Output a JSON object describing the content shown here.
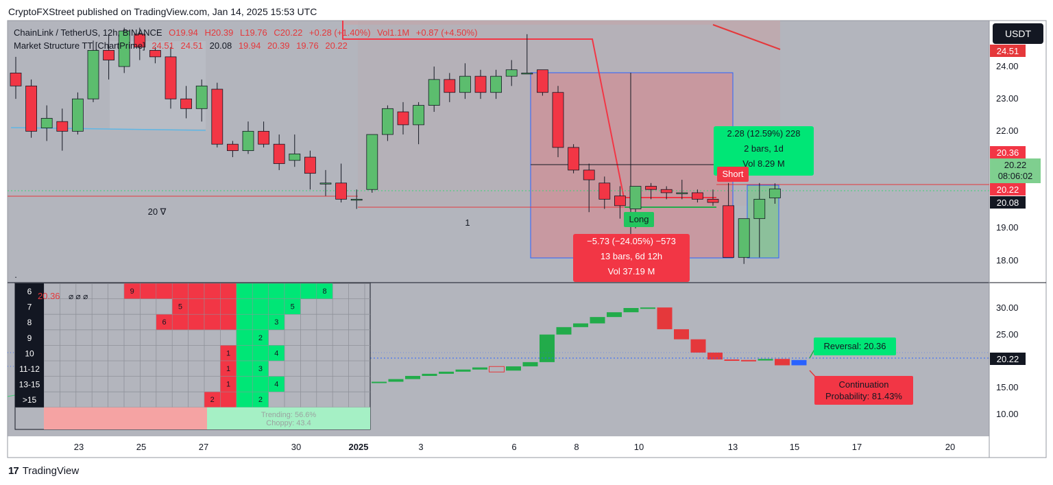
{
  "header": "CryptoFXStreet published on TradingView.com, Jan 14, 2025 15:53 UTC",
  "brand": "TradingView",
  "symbol_line": {
    "symbol": "ChainLink / TetherUS, 12h, BINANCE",
    "open": "O19.94",
    "high": "H20.39",
    "low": "L19.76",
    "close": "C20.22",
    "change": "+0.28 (+1.40%)",
    "vol": "Vol1.1M",
    "vol_change": "+0.87 (+4.50%)"
  },
  "indicator_line": {
    "name": "Market Structure TT [ChartPrime]",
    "values": [
      "24.51",
      "24.51",
      "20.08",
      "19.94",
      "20.39",
      "19.76",
      "20.22"
    ]
  },
  "currency": "USDT",
  "price_tags": {
    "top": "24.51",
    "r1": "20.36",
    "last": "20.22",
    "countdown": "08:06:02",
    "r2": "20.22",
    "dark": "20.08",
    "lower_last": "20.22"
  },
  "price_axis_upper": [
    "24.00",
    "23.00",
    "22.00",
    "19.00",
    "18.00"
  ],
  "price_axis_lower": [
    "30.00",
    "25.00",
    "15.00",
    "10.00"
  ],
  "time_axis": [
    "23",
    "25",
    "27",
    "30",
    "2025",
    "3",
    "6",
    "8",
    "10",
    "13",
    "15",
    "17",
    "20"
  ],
  "chart_labels": {
    "twenty": "20 ∇",
    "one": "1",
    "long": "Long",
    "short": "Short",
    "dot": "."
  },
  "measure_short": {
    "line1": "−5.73 (−24.05%) −573",
    "line2": "13 bars, 6d 12h",
    "line3": "Vol 37.19 M"
  },
  "measure_long": {
    "line1": "2.28 (12.59%) 228",
    "line2": "2 bars, 1d",
    "line3": "Vol 8.29 M"
  },
  "lower_labels": {
    "reversal": "Reversal: 20.36",
    "continuation": "Continuation",
    "probability": "Probability: 81.43%"
  },
  "heat_table": {
    "row_labels": [
      "6",
      "7",
      "8",
      "9",
      "10",
      "11-12",
      "13-15",
      ">15"
    ],
    "overlay": "20.36",
    "overlay_marks": "⌀ ⌀ ⌀",
    "red_counts": [
      {
        "row": 0,
        "text": "9"
      },
      {
        "row": 1,
        "text": "5"
      },
      {
        "row": 2,
        "text": "6"
      },
      {
        "row": 4,
        "text": "1"
      },
      {
        "row": 5,
        "text": "1"
      },
      {
        "row": 6,
        "text": "1"
      },
      {
        "row": 7,
        "text": "2"
      }
    ],
    "green_counts": [
      {
        "row": 0,
        "text": "8"
      },
      {
        "row": 1,
        "text": "5"
      },
      {
        "row": 2,
        "text": "3"
      },
      {
        "row": 3,
        "text": "2"
      },
      {
        "row": 4,
        "text": "4"
      },
      {
        "row": 5,
        "text": "3"
      },
      {
        "row": 6,
        "text": "4"
      },
      {
        "row": 7,
        "text": "2"
      }
    ],
    "right_footer": [
      "Trending: 56.6%",
      "Choppy: 43.4"
    ]
  },
  "chart_data": {
    "type": "candlestick",
    "symbol": "ChainLink / TetherUS",
    "interval": "12h",
    "exchange": "BINANCE",
    "ylim": [
      17.5,
      25.2
    ],
    "candles": [
      {
        "o": 23.8,
        "h": 24.3,
        "l": 23.0,
        "c": 23.4
      },
      {
        "o": 23.4,
        "h": 23.6,
        "l": 21.8,
        "c": 22.0
      },
      {
        "o": 22.1,
        "h": 22.8,
        "l": 21.7,
        "c": 22.4
      },
      {
        "o": 22.3,
        "h": 22.7,
        "l": 21.4,
        "c": 22.0
      },
      {
        "o": 22.0,
        "h": 23.2,
        "l": 21.9,
        "c": 23.0
      },
      {
        "o": 23.0,
        "h": 24.8,
        "l": 22.9,
        "c": 24.5
      },
      {
        "o": 24.5,
        "h": 25.0,
        "l": 23.6,
        "c": 24.2
      },
      {
        "o": 24.0,
        "h": 25.2,
        "l": 23.8,
        "c": 25.1
      },
      {
        "o": 25.0,
        "h": 25.2,
        "l": 24.2,
        "c": 24.6
      },
      {
        "o": 24.5,
        "h": 24.6,
        "l": 24.1,
        "c": 24.3
      },
      {
        "o": 24.3,
        "h": 24.6,
        "l": 22.7,
        "c": 23.0
      },
      {
        "o": 23.0,
        "h": 23.4,
        "l": 22.4,
        "c": 22.7
      },
      {
        "o": 22.7,
        "h": 23.6,
        "l": 22.3,
        "c": 23.4
      },
      {
        "o": 23.3,
        "h": 23.5,
        "l": 21.5,
        "c": 21.6
      },
      {
        "o": 21.6,
        "h": 21.7,
        "l": 21.2,
        "c": 21.4
      },
      {
        "o": 21.4,
        "h": 22.3,
        "l": 21.3,
        "c": 22.0
      },
      {
        "o": 22.0,
        "h": 22.3,
        "l": 21.5,
        "c": 21.6
      },
      {
        "o": 21.6,
        "h": 21.9,
        "l": 20.8,
        "c": 21.0
      },
      {
        "o": 21.1,
        "h": 21.9,
        "l": 20.9,
        "c": 21.3
      },
      {
        "o": 21.2,
        "h": 21.4,
        "l": 20.2,
        "c": 20.7
      },
      {
        "o": 20.4,
        "h": 20.8,
        "l": 20.0,
        "c": 20.4
      },
      {
        "o": 20.4,
        "h": 21.0,
        "l": 19.8,
        "c": 19.9
      },
      {
        "o": 19.9,
        "h": 20.2,
        "l": 19.6,
        "c": 19.9
      },
      {
        "o": 20.2,
        "h": 21.9,
        "l": 20.1,
        "c": 21.9
      },
      {
        "o": 21.9,
        "h": 22.8,
        "l": 21.7,
        "c": 22.7
      },
      {
        "o": 22.6,
        "h": 22.9,
        "l": 21.9,
        "c": 22.2
      },
      {
        "o": 22.2,
        "h": 22.9,
        "l": 21.6,
        "c": 22.8
      },
      {
        "o": 22.8,
        "h": 24.0,
        "l": 22.6,
        "c": 23.6
      },
      {
        "o": 23.6,
        "h": 23.8,
        "l": 22.9,
        "c": 23.2
      },
      {
        "o": 23.2,
        "h": 24.1,
        "l": 23.0,
        "c": 23.7
      },
      {
        "o": 23.7,
        "h": 23.9,
        "l": 23.0,
        "c": 23.2
      },
      {
        "o": 23.2,
        "h": 23.9,
        "l": 23.0,
        "c": 23.7
      },
      {
        "o": 23.7,
        "h": 24.2,
        "l": 23.4,
        "c": 23.9
      },
      {
        "o": 23.8,
        "h": 25.0,
        "l": 23.8,
        "c": 23.8
      },
      {
        "o": 23.9,
        "h": 23.9,
        "l": 23.1,
        "c": 23.2
      },
      {
        "o": 23.2,
        "h": 23.4,
        "l": 21.2,
        "c": 21.5
      },
      {
        "o": 21.5,
        "h": 21.6,
        "l": 20.7,
        "c": 20.8
      },
      {
        "o": 20.8,
        "h": 21.0,
        "l": 19.5,
        "c": 20.5
      },
      {
        "o": 20.4,
        "h": 20.6,
        "l": 19.6,
        "c": 19.9
      },
      {
        "o": 20.0,
        "h": 20.3,
        "l": 19.3,
        "c": 19.7
      },
      {
        "o": 19.6,
        "h": 20.3,
        "l": 19.0,
        "c": 20.3
      },
      {
        "o": 20.3,
        "h": 20.4,
        "l": 19.9,
        "c": 20.2
      },
      {
        "o": 20.2,
        "h": 20.3,
        "l": 19.9,
        "c": 20.1
      },
      {
        "o": 20.1,
        "h": 20.5,
        "l": 19.9,
        "c": 20.1
      },
      {
        "o": 20.1,
        "h": 20.2,
        "l": 19.8,
        "c": 19.9
      },
      {
        "o": 19.9,
        "h": 20.2,
        "l": 19.7,
        "c": 19.8
      },
      {
        "o": 19.7,
        "h": 20.4,
        "l": 18.1,
        "c": 18.1
      },
      {
        "o": 18.1,
        "h": 19.3,
        "l": 17.9,
        "c": 19.3
      },
      {
        "o": 19.3,
        "h": 20.4,
        "l": 18.1,
        "c": 19.9
      },
      {
        "o": 19.94,
        "h": 20.39,
        "l": 19.76,
        "c": 20.22
      }
    ],
    "lower_steps": [
      {
        "v": 16.1,
        "c": "g"
      },
      {
        "v": 16.6,
        "c": "g"
      },
      {
        "v": 17.2,
        "c": "g"
      },
      {
        "v": 17.6,
        "c": "g"
      },
      {
        "v": 18.0,
        "c": "g"
      },
      {
        "v": 18.4,
        "c": "g"
      },
      {
        "v": 18.8,
        "c": "g"
      },
      {
        "v": 18.2,
        "c": "r"
      },
      {
        "v": 19.0,
        "c": "g"
      },
      {
        "v": 19.8,
        "c": "g"
      },
      {
        "v": 25.0,
        "c": "g"
      },
      {
        "v": 26.4,
        "c": "g"
      },
      {
        "v": 27.1,
        "c": "g"
      },
      {
        "v": 28.3,
        "c": "g"
      },
      {
        "v": 29.2,
        "c": "g"
      },
      {
        "v": 30.0,
        "c": "g"
      },
      {
        "v": 30.1,
        "c": "g"
      },
      {
        "v": 26.0,
        "c": "r"
      },
      {
        "v": 24.1,
        "c": "r"
      },
      {
        "v": 21.6,
        "c": "r"
      },
      {
        "v": 20.3,
        "c": "r"
      },
      {
        "v": 20.2,
        "c": "r"
      },
      {
        "v": 20.1,
        "c": "r"
      },
      {
        "v": 20.4,
        "c": "g"
      },
      {
        "v": 19.2,
        "c": "r"
      },
      {
        "v": 20.2,
        "c": "b"
      }
    ]
  }
}
